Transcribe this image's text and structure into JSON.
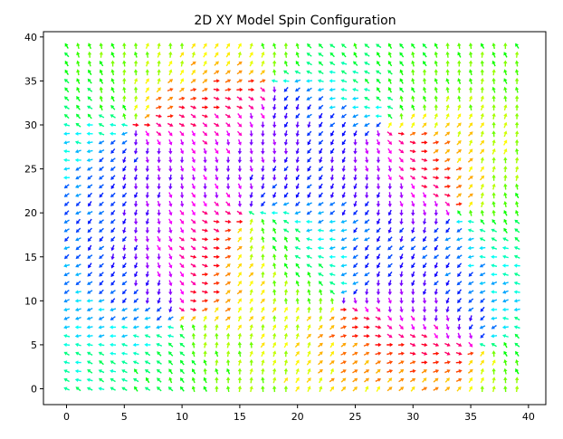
{
  "chart_data": {
    "type": "quiver",
    "title": "2D XY Model Spin Configuration",
    "xlabel": "",
    "ylabel": "",
    "grid": false,
    "lattice": {
      "nx": 40,
      "ny": 40,
      "x_start": 0,
      "y_start": 0,
      "step": 1
    },
    "xlim": [
      -2,
      41.5
    ],
    "ylim": [
      -1.8,
      40.6
    ],
    "x_ticks": [
      0,
      5,
      10,
      15,
      20,
      25,
      30,
      35,
      40
    ],
    "y_ticks": [
      0,
      5,
      10,
      15,
      20,
      25,
      30,
      35,
      40
    ],
    "x_tick_labels": [
      "0",
      "5",
      "10",
      "15",
      "20",
      "25",
      "30",
      "35",
      "40"
    ],
    "y_tick_labels": [
      "0",
      "5",
      "10",
      "15",
      "20",
      "25",
      "30",
      "35",
      "40"
    ],
    "arrow_length": 0.55,
    "colormap": "hsv",
    "angle_unit": "radians",
    "angle_model": {
      "note": "spin angle theta(x,y) in radians, coloured by hsv(theta/2pi)",
      "vortices": [
        {
          "x": 16,
          "y": 20,
          "q": 1
        },
        {
          "x": 24,
          "y": 10,
          "q": -1
        },
        {
          "x": 6,
          "y": 30,
          "q": 1
        },
        {
          "x": 34,
          "y": 20,
          "q": -1
        },
        {
          "x": 18,
          "y": 35,
          "q": -1
        },
        {
          "x": 28,
          "y": 30,
          "q": 1
        },
        {
          "x": 10,
          "y": 8,
          "q": -1
        },
        {
          "x": 36,
          "y": 5,
          "q": 1
        }
      ],
      "base_angle": 2.1,
      "noise": 0.35
    }
  }
}
